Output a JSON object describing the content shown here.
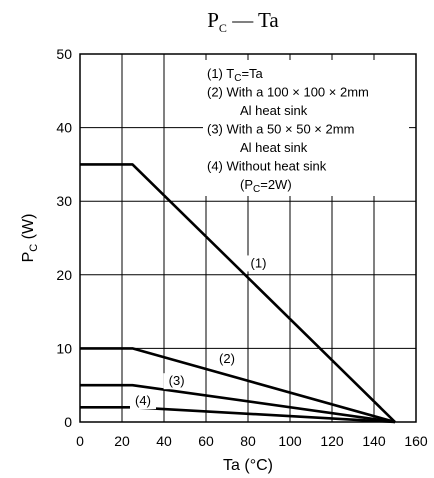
{
  "chart_data": {
    "type": "line",
    "title": {
      "main": "P",
      "sub": "C",
      "rest": " — Ta"
    },
    "xlabel": "Ta  (°C)",
    "ylabel": {
      "main": "P",
      "sub": "C",
      "rest": "  (W)"
    },
    "xlim": [
      0,
      160
    ],
    "ylim": [
      0,
      50
    ],
    "xticks": [
      "0",
      "20",
      "40",
      "60",
      "80",
      "100",
      "120",
      "140",
      "160"
    ],
    "yticks": [
      "0",
      "10",
      "20",
      "30",
      "40",
      "50"
    ],
    "grid": true,
    "series": [
      {
        "name": "(1)",
        "x": [
          0,
          25,
          150
        ],
        "y": [
          35,
          35,
          0
        ]
      },
      {
        "name": "(2)",
        "x": [
          0,
          25,
          150
        ],
        "y": [
          10,
          10,
          0
        ]
      },
      {
        "name": "(3)",
        "x": [
          0,
          25,
          150
        ],
        "y": [
          5,
          5,
          0
        ]
      },
      {
        "name": "(4)",
        "x": [
          0,
          25,
          150
        ],
        "y": [
          2,
          2,
          0
        ]
      }
    ],
    "curve_labels": [
      {
        "text": "(1)",
        "x": 85,
        "y": 21
      },
      {
        "text": "(2)",
        "x": 70,
        "y": 8
      },
      {
        "text": "(3)",
        "x": 46,
        "y": 5
      },
      {
        "text": "(4)",
        "x": 30,
        "y": 2.3
      }
    ],
    "legend": {
      "position": "top-right",
      "lines": [
        {
          "text": "(1) T",
          "sub": "C",
          "rest": "=Ta"
        },
        {
          "text": "(2) With a 100 × 100 × 2mm"
        },
        {
          "text": "Al heat sink",
          "indent": true
        },
        {
          "text": "(3) With a 50 × 50 × 2mm"
        },
        {
          "text": "Al heat sink",
          "indent": true
        },
        {
          "text": "(4) Without heat sink"
        },
        {
          "text": "(P",
          "sub": "C",
          "rest": "=2W)",
          "indent": true
        }
      ]
    }
  }
}
